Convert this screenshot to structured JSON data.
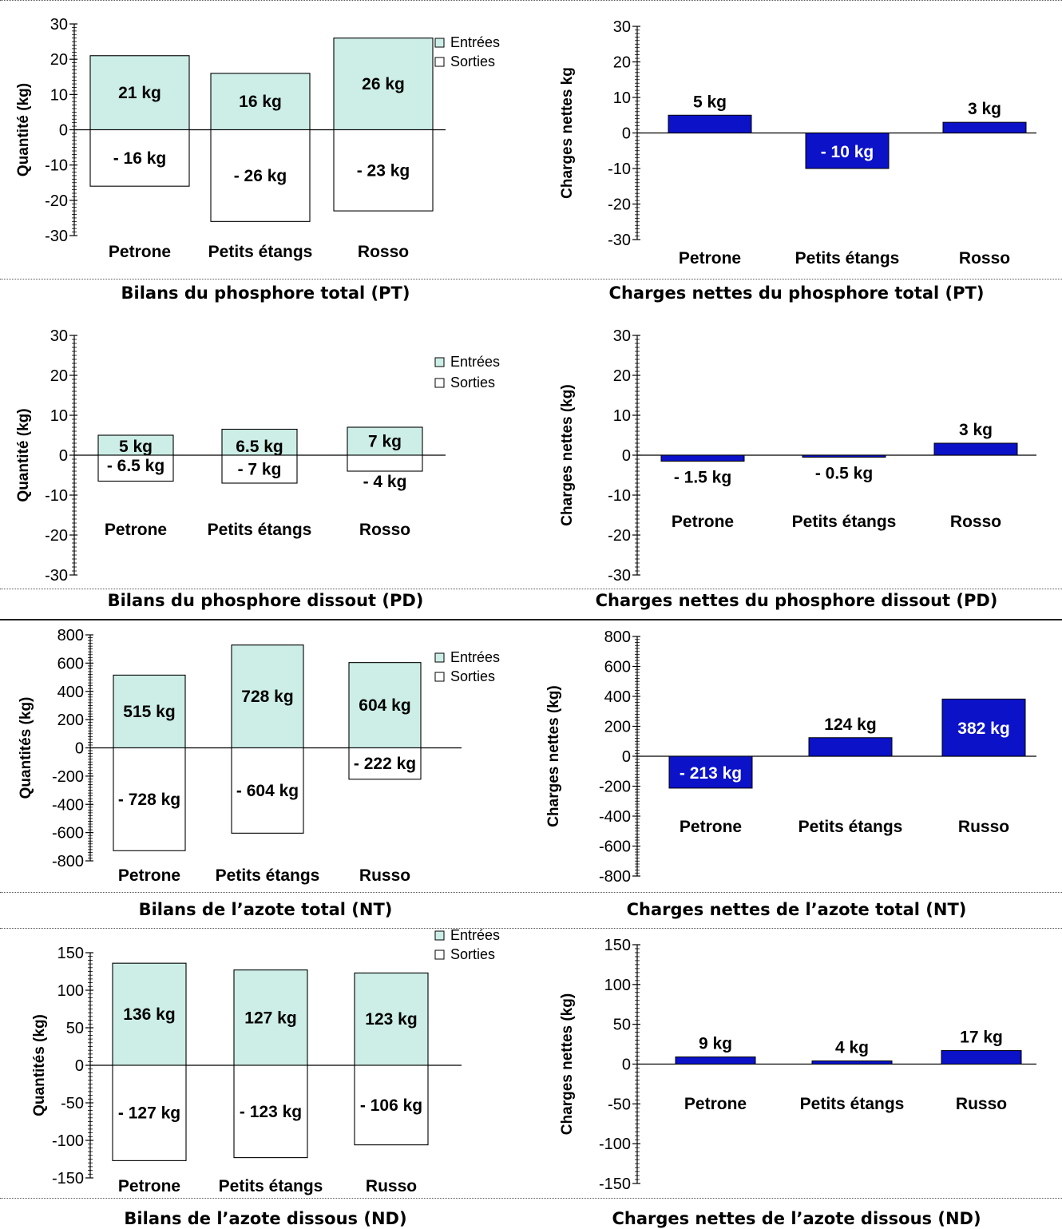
{
  "colors": {
    "entrees": "#cceee6",
    "sorties": "#ffffff",
    "net": "#0b12c8",
    "axis": "#000000",
    "net_label_inside": "#ffffff"
  },
  "charts": [
    {
      "id": "bilan-pt",
      "caption": "Bilans du phosphore total (PT)",
      "chart_data": {
        "type": "bar",
        "ylabel": "Quantité (kg)",
        "ylim": [
          -30,
          30
        ],
        "yticks": [
          30,
          20,
          10,
          0,
          -10,
          -20,
          -30
        ],
        "categories": [
          "Petrone",
          "Petits étangs",
          "Rosso"
        ],
        "legend": [
          "Entrées",
          "Sorties"
        ],
        "series": [
          {
            "name": "Entrées",
            "values": [
              21,
              16,
              26
            ],
            "labels": [
              "21 kg",
              "16 kg",
              "26 kg"
            ]
          },
          {
            "name": "Sorties",
            "values": [
              -16,
              -26,
              -23
            ],
            "labels": [
              "- 16 kg",
              "- 26 kg",
              "- 23 kg"
            ]
          }
        ]
      }
    },
    {
      "id": "net-pt",
      "caption": "Charges nettes du phosphore total (PT)",
      "chart_data": {
        "type": "bar",
        "ylabel": "Charges nettes kg",
        "ylim": [
          -30,
          30
        ],
        "yticks": [
          30,
          20,
          10,
          0,
          -10,
          -20,
          -30
        ],
        "categories": [
          "Petrone",
          "Petits étangs",
          "Rosso"
        ],
        "values": [
          5,
          -10,
          3
        ],
        "labels": [
          "5 kg",
          "- 10 kg",
          "3 kg"
        ]
      }
    },
    {
      "id": "bilan-pd",
      "caption": "Bilans du phosphore dissout (PD)",
      "chart_data": {
        "type": "bar",
        "ylabel": "Quantité (kg)",
        "ylim": [
          -30,
          30
        ],
        "yticks": [
          30,
          20,
          10,
          0,
          -10,
          -20,
          -30
        ],
        "categories": [
          "Petrone",
          "Petits étangs",
          "Rosso"
        ],
        "legend": [
          "Entrées",
          "Sorties"
        ],
        "series": [
          {
            "name": "Entrées",
            "values": [
              5,
              6.5,
              7
            ],
            "labels": [
              "5 kg",
              "6.5 kg",
              "7 kg"
            ]
          },
          {
            "name": "Sorties",
            "values": [
              -6.5,
              -7,
              -4
            ],
            "labels": [
              "- 6.5 kg",
              "- 7 kg",
              "- 4 kg"
            ]
          }
        ]
      }
    },
    {
      "id": "net-pd",
      "caption": "Charges nettes du phosphore dissout (PD)",
      "chart_data": {
        "type": "bar",
        "ylabel": "Charges nettes (kg)",
        "ylim": [
          -30,
          30
        ],
        "yticks": [
          30,
          20,
          10,
          0,
          -10,
          -20,
          -30
        ],
        "categories": [
          "Petrone",
          "Petits étangs",
          "Rosso"
        ],
        "values": [
          -1.5,
          -0.5,
          3
        ],
        "labels": [
          "- 1.5 kg",
          "- 0.5 kg",
          "3 kg"
        ]
      }
    },
    {
      "id": "bilan-nt",
      "caption": "Bilans de l’azote total (NT)",
      "chart_data": {
        "type": "bar",
        "ylabel": "Quantités (kg)",
        "ylim": [
          -800,
          800
        ],
        "yticks": [
          800,
          600,
          400,
          200,
          0,
          -200,
          -400,
          -600,
          -800
        ],
        "categories": [
          "Petrone",
          "Petits étangs",
          "Russo"
        ],
        "legend": [
          "Entrées",
          "Sorties"
        ],
        "series": [
          {
            "name": "Entrées",
            "values": [
              515,
              728,
              604
            ],
            "labels": [
              "515 kg",
              "728 kg",
              "604 kg"
            ]
          },
          {
            "name": "Sorties",
            "values": [
              -728,
              -604,
              -222
            ],
            "labels": [
              "- 728 kg",
              "- 604 kg",
              "- 222 kg"
            ]
          }
        ]
      }
    },
    {
      "id": "net-nt",
      "caption": "Charges nettes de l’azote total (NT)",
      "chart_data": {
        "type": "bar",
        "ylabel": "Charges nettes (kg)",
        "ylim": [
          -800,
          800
        ],
        "yticks": [
          800,
          600,
          400,
          200,
          0,
          -200,
          -400,
          -600,
          -800
        ],
        "categories": [
          "Petrone",
          "Petits étangs",
          "Russo"
        ],
        "values": [
          -213,
          124,
          382
        ],
        "labels": [
          "- 213 kg",
          "124 kg",
          "382 kg"
        ]
      }
    },
    {
      "id": "bilan-nd",
      "caption": "Bilans de l’azote dissous (ND)",
      "chart_data": {
        "type": "bar",
        "ylabel": "Quantités (kg)",
        "ylim": [
          -150,
          150
        ],
        "yticks": [
          150,
          100,
          50,
          0,
          -50,
          -100,
          -150
        ],
        "categories": [
          "Petrone",
          "Petits étangs",
          "Russo"
        ],
        "legend": [
          "Entrées",
          "Sorties"
        ],
        "series": [
          {
            "name": "Entrées",
            "values": [
              136,
              127,
              123
            ],
            "labels": [
              "136 kg",
              "127 kg",
              "123 kg"
            ]
          },
          {
            "name": "Sorties",
            "values": [
              -127,
              -123,
              -106
            ],
            "labels": [
              "- 127 kg",
              "- 123 kg",
              "- 106 kg"
            ]
          }
        ]
      }
    },
    {
      "id": "net-nd",
      "caption": "Charges nettes de l’azote dissous (ND)",
      "chart_data": {
        "type": "bar",
        "ylabel": "Charges nettes (kg)",
        "ylim": [
          -150,
          150
        ],
        "yticks": [
          150,
          100,
          50,
          0,
          -50,
          -100,
          -150
        ],
        "categories": [
          "Petrone",
          "Petits étangs",
          "Russo"
        ],
        "values": [
          9,
          4,
          17
        ],
        "labels": [
          "9 kg",
          "4 kg",
          "17 kg"
        ]
      }
    }
  ]
}
